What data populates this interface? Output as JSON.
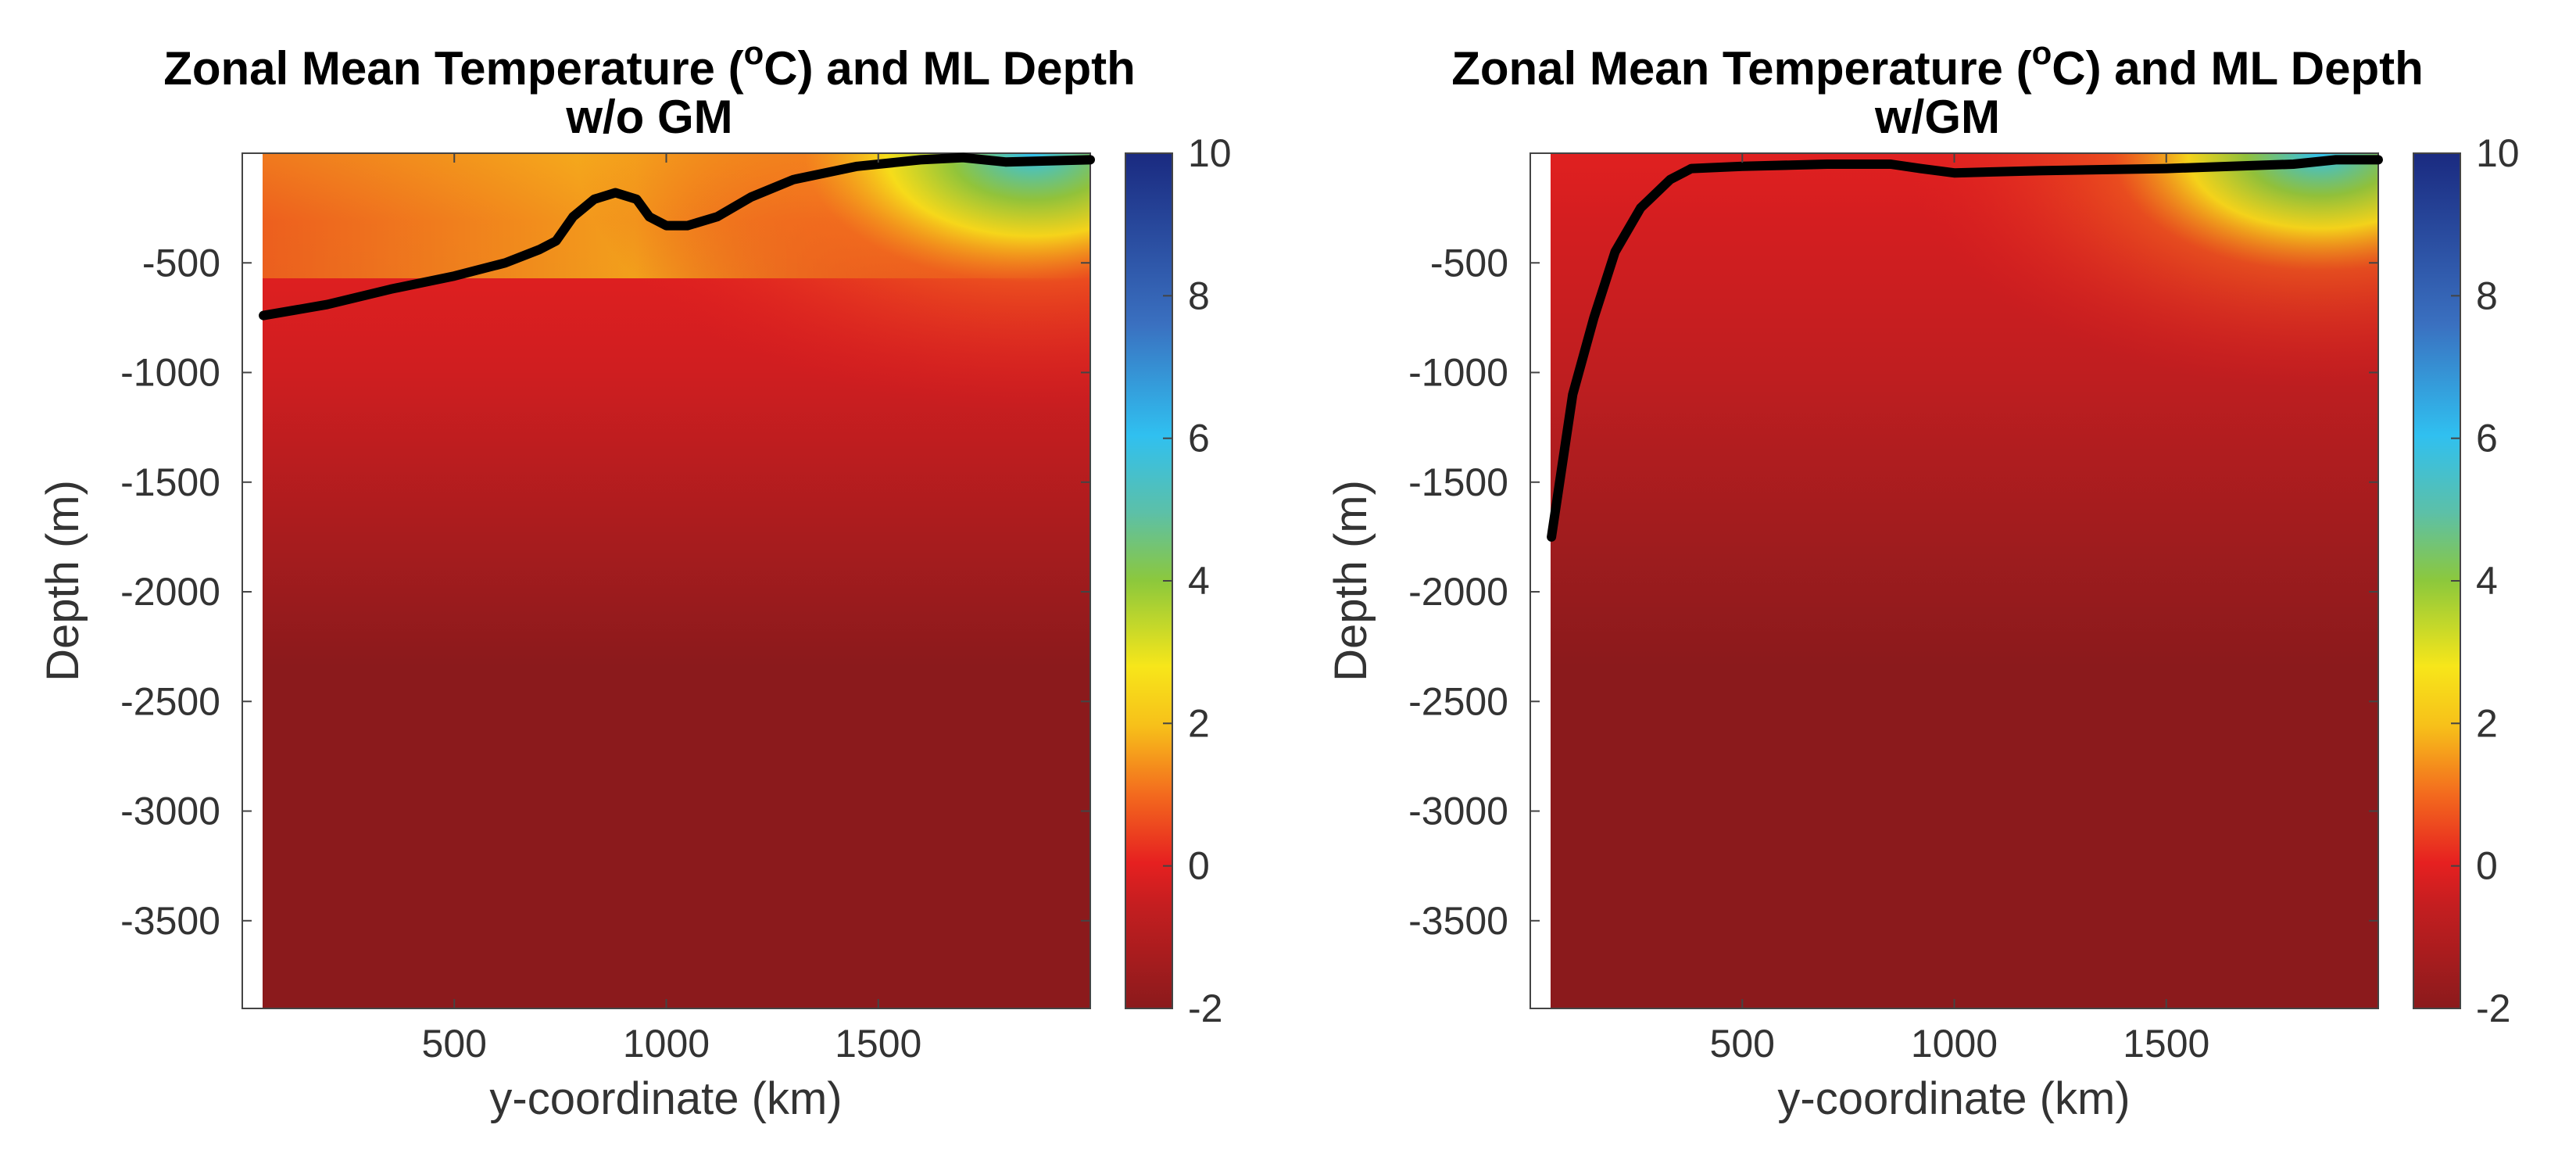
{
  "chart_data": [
    {
      "type": "heatmap",
      "title_lines": [
        "Zonal Mean Temperature (",
        "C) and ML Depth"
      ],
      "title_superscript": "o",
      "subtitle": "w/o GM",
      "xlabel": "y-coordinate (km)",
      "ylabel": "Depth (m)",
      "xlim": [
        0,
        2000
      ],
      "ylim": [
        -3900,
        0
      ],
      "xticks": [
        500,
        1000,
        1500
      ],
      "xtick_labels": [
        "500",
        "1000",
        "1500"
      ],
      "yticks": [
        -500,
        -1000,
        -1500,
        -2000,
        -2500,
        -3000,
        -3500
      ],
      "ytick_labels": [
        "-500",
        "-1000",
        "-1500",
        "-2000",
        "-2500",
        "-3000",
        "-3500"
      ],
      "colorbar": {
        "min": -2,
        "max": 10,
        "ticks": [
          10,
          8,
          6,
          4,
          2,
          0,
          -2
        ],
        "tick_labels": [
          "10",
          "8",
          "6",
          "4",
          "2",
          "0",
          "-2"
        ]
      },
      "colors": {
        "deep": "#8b1a1c",
        "warm_red": "#e62020",
        "orange": "#f5a01e",
        "yellow": "#f7e61a",
        "green": "#8cc83c",
        "cyan": "#30c0f0",
        "navy": "#1a2a80"
      },
      "ml_depth": {
        "name": "ML Depth",
        "x": [
          50,
          200,
          350,
          500,
          620,
          700,
          740,
          780,
          830,
          880,
          930,
          960,
          1000,
          1050,
          1120,
          1200,
          1300,
          1450,
          1600,
          1700,
          1800,
          2000
        ],
        "y": [
          -740,
          -690,
          -620,
          -560,
          -500,
          -440,
          -400,
          -290,
          -210,
          -180,
          -210,
          -290,
          -330,
          -330,
          -290,
          -200,
          -120,
          -60,
          -30,
          -20,
          -40,
          -30
        ]
      }
    },
    {
      "type": "heatmap",
      "title_lines": [
        "Zonal Mean Temperature (",
        "C) and ML Depth"
      ],
      "title_superscript": "o",
      "subtitle": "w/GM",
      "xlabel": "y-coordinate (km)",
      "ylabel": "Depth (m)",
      "xlim": [
        0,
        2000
      ],
      "ylim": [
        -3900,
        0
      ],
      "xticks": [
        500,
        1000,
        1500
      ],
      "xtick_labels": [
        "500",
        "1000",
        "1500"
      ],
      "yticks": [
        -500,
        -1000,
        -1500,
        -2000,
        -2500,
        -3000,
        -3500
      ],
      "ytick_labels": [
        "-500",
        "-1000",
        "-1500",
        "-2000",
        "-2500",
        "-3000",
        "-3500"
      ],
      "colorbar": {
        "min": -2,
        "max": 10,
        "ticks": [
          10,
          8,
          6,
          4,
          2,
          0,
          -2
        ],
        "tick_labels": [
          "10",
          "8",
          "6",
          "4",
          "2",
          "0",
          "-2"
        ]
      },
      "colors": {
        "deep": "#8b1a1c",
        "warm_red": "#e62020",
        "orange": "#f5a01e",
        "yellow": "#f7e61a",
        "green": "#8cc83c",
        "cyan": "#30c0f0",
        "navy": "#1a2a80"
      },
      "ml_depth": {
        "name": "ML Depth",
        "x": [
          50,
          100,
          150,
          200,
          260,
          330,
          380,
          500,
          700,
          850,
          920,
          1000,
          1200,
          1500,
          1800,
          1900,
          2000
        ],
        "y": [
          -1750,
          -1100,
          -750,
          -450,
          -250,
          -120,
          -70,
          -60,
          -50,
          -50,
          -70,
          -90,
          -80,
          -70,
          -50,
          -30,
          -30
        ]
      }
    }
  ]
}
